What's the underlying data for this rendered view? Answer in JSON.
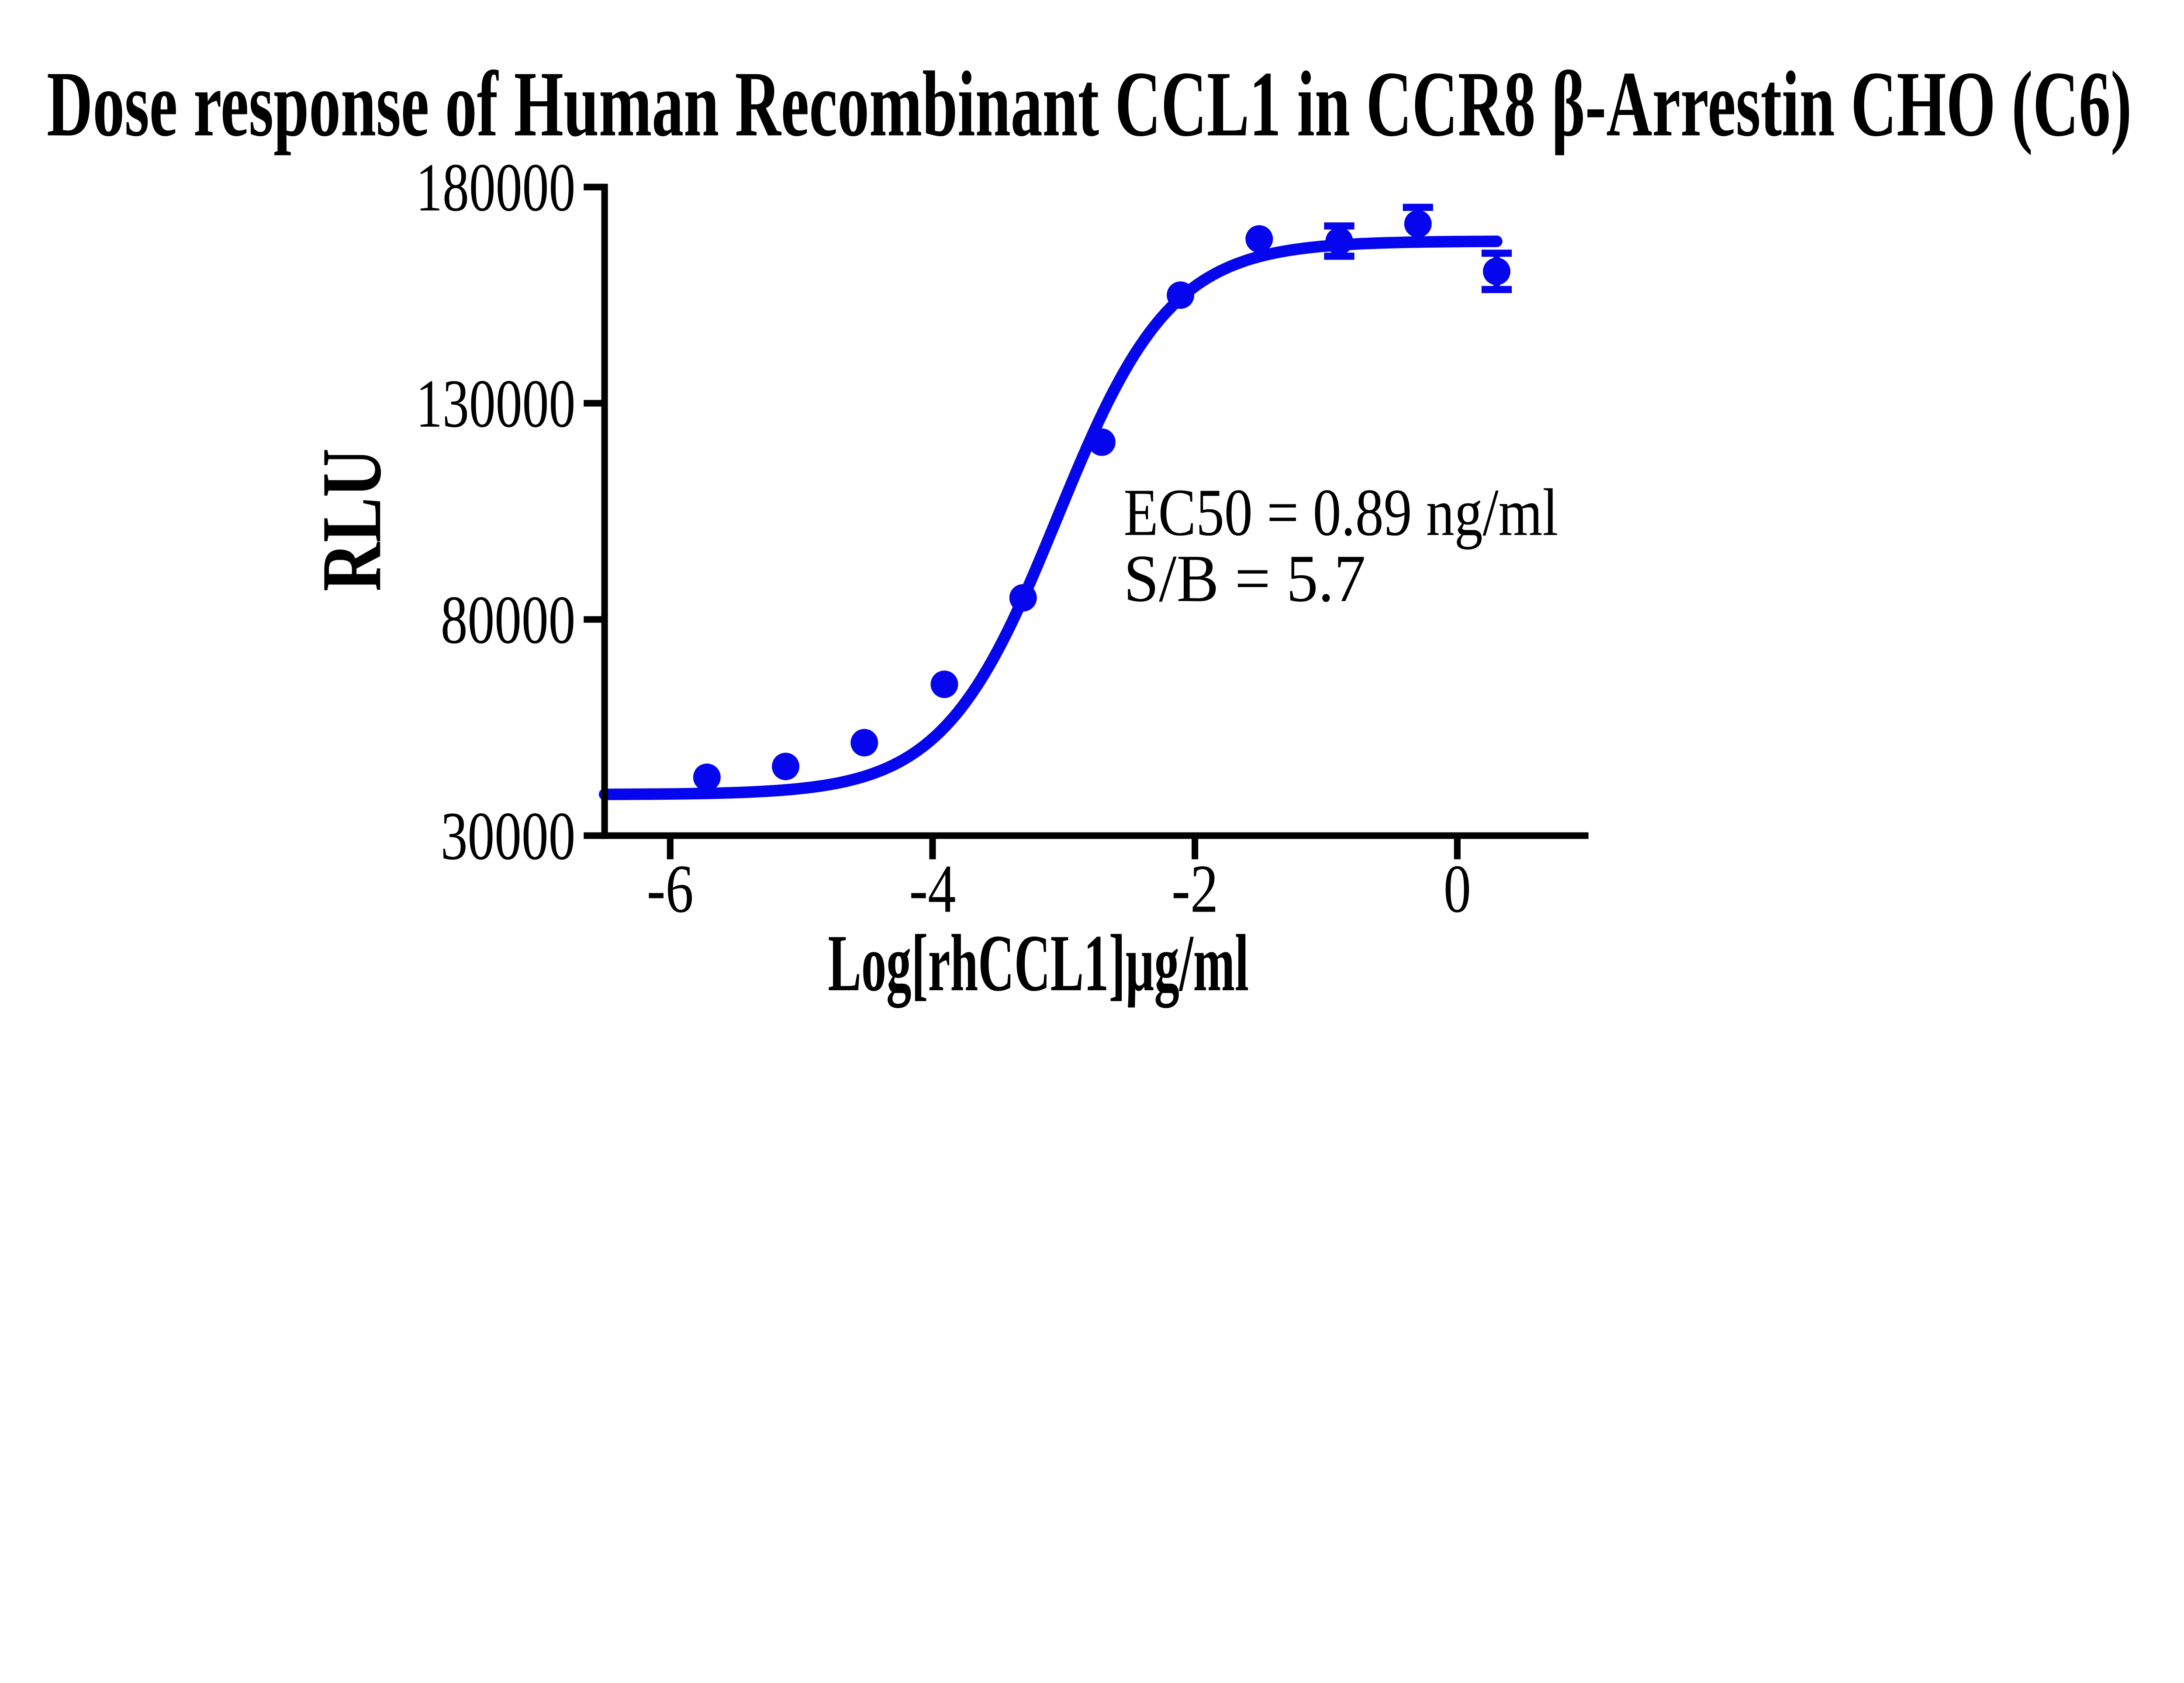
{
  "figure": {
    "title": "Dose response of Human Recombinant CCL1 in CCR8 β-Arrestin CHO (C6)",
    "background_color": "#FFFFFF",
    "text_color": "#000000",
    "accent_color": "#0606EE"
  },
  "annotation": {
    "line1": "EC50 = 0.89 ng/ml",
    "line2": "S/B = 5.7"
  },
  "chart_data": {
    "type": "scatter",
    "title": "Dose response of Human Recombinant CCL1 in CCR8 β-Arrestin CHO (C6)",
    "xlabel": "Log[rhCCL1]µg/ml",
    "ylabel": "RLU",
    "xlim": [
      -6.5,
      1.0
    ],
    "ylim": [
      30000,
      180000
    ],
    "grid": false,
    "legend_position": "none",
    "x_ticks": [
      -6,
      -4,
      -2,
      0
    ],
    "x_tick_labels": [
      "-6",
      "-4",
      "-2",
      "0"
    ],
    "y_ticks": [
      30000,
      80000,
      130000,
      180000
    ],
    "y_tick_labels": [
      "30000",
      "80000",
      "130000",
      "180000"
    ],
    "series": [
      {
        "name": "rhCCL1",
        "color": "#0606EE",
        "marker": "circle",
        "x": [
          -5.72,
          -5.12,
          -4.52,
          -3.91,
          -3.31,
          -2.71,
          -2.11,
          -1.51,
          -0.9,
          -0.3,
          0.3
        ],
        "y": [
          43500,
          46000,
          51500,
          65000,
          85000,
          121000,
          155000,
          168000,
          167500,
          171500,
          160500
        ],
        "y_error": [
          null,
          null,
          null,
          null,
          null,
          null,
          null,
          null,
          3500,
          3800,
          4200
        ],
        "fit": {
          "model": "4PL",
          "bottom": 39500,
          "top": 167500,
          "log_ec50": -3.05,
          "hill_slope": 1.0,
          "curve_x_start": -6.5,
          "curve_x_end": 0.3
        }
      }
    ],
    "annotations": [
      "EC50 = 0.89 ng/ml",
      "S/B = 5.7"
    ]
  }
}
